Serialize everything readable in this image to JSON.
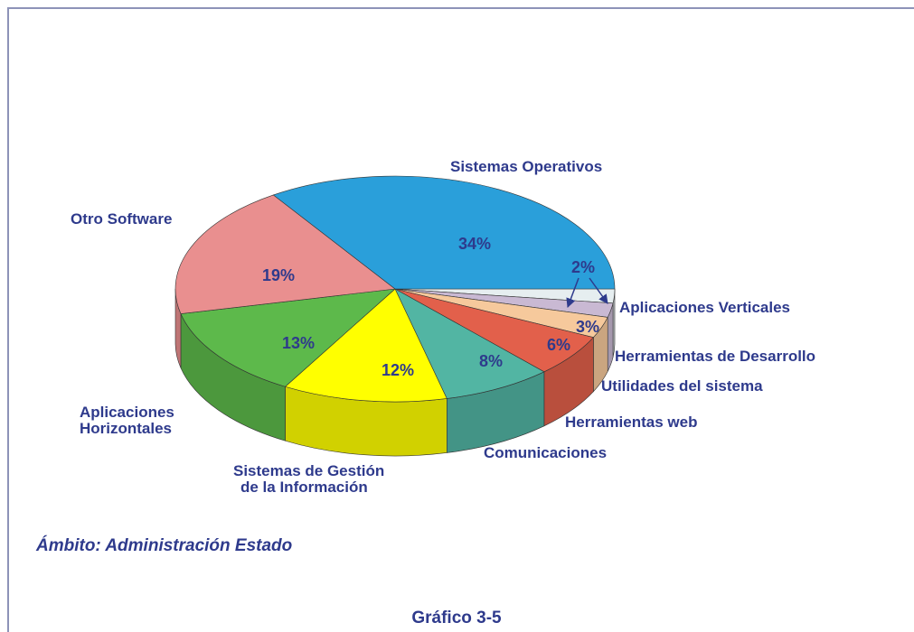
{
  "chart_data": {
    "type": "pie3d",
    "categories": [
      "Aplicaciones Verticales",
      "Herramientas de Desarrollo",
      "Utilidades del sistema",
      "Herramientas web",
      "Comunicaciones",
      "Sistemas de Gestión\nde la Información",
      "Aplicaciones\nHorizontales",
      "Otro Software",
      "Sistemas  Operativos"
    ],
    "values": [
      2,
      2,
      3,
      6,
      8,
      12,
      13,
      19,
      34
    ],
    "value_labels": [
      "2%",
      null,
      "3%",
      "6%",
      "8%",
      "12%",
      "13%",
      "19%",
      "34%"
    ],
    "colors": [
      "#e6eef0",
      "#c9b9d3",
      "#f6c99c",
      "#e2604b",
      "#52b5a3",
      "#ffff00",
      "#5db94b",
      "#e98f8f",
      "#2a9fda"
    ],
    "annotation": "Ámbito: Administración Estado",
    "caption": "Gráfico 3-5"
  }
}
